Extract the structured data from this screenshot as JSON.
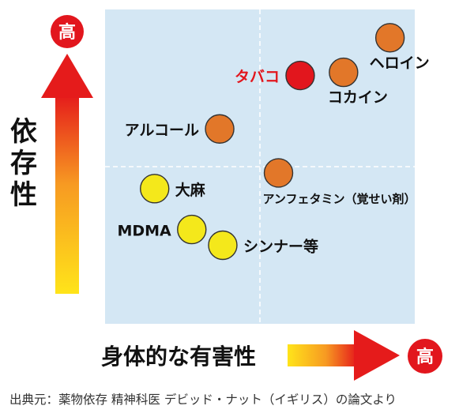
{
  "badges": {
    "high_top": "高",
    "high_right": "高"
  },
  "y_axis_label": "依存性",
  "x_axis_label": "身体的な有害性",
  "source_caption": "出典元：薬物依存 精神科医 デビッド・ナット（イギリス）の論文より",
  "colors": {
    "plot_bg": "#d4e7f4",
    "orange": "#e27729",
    "red": "#e2161d",
    "yellow": "#f4e81b",
    "highlight_label": "#e2161d",
    "badge": "#e2161d"
  },
  "chart_data": {
    "type": "scatter",
    "xlabel": "身体的な有害性",
    "ylabel": "依存性",
    "xlim": [
      0,
      100
    ],
    "ylim": [
      0,
      100
    ],
    "grid": "dashed quadrant lines at midpoint",
    "points": [
      {
        "label": "ヘロイン",
        "x": 92,
        "y": 91,
        "color": "orange"
      },
      {
        "label": "コカイン",
        "x": 77,
        "y": 80,
        "color": "orange"
      },
      {
        "label": "タバコ",
        "x": 63,
        "y": 79,
        "color": "red",
        "highlight": true
      },
      {
        "label": "アルコール",
        "x": 37,
        "y": 62,
        "color": "orange"
      },
      {
        "label": "アンフェタミン（覚せい剤）",
        "x": 56,
        "y": 48,
        "color": "orange"
      },
      {
        "label": "大麻",
        "x": 16,
        "y": 43,
        "color": "yellow"
      },
      {
        "label": "MDMA",
        "x": 28,
        "y": 30,
        "color": "yellow"
      },
      {
        "label": "シンナー等",
        "x": 38,
        "y": 25,
        "color": "yellow"
      }
    ]
  }
}
